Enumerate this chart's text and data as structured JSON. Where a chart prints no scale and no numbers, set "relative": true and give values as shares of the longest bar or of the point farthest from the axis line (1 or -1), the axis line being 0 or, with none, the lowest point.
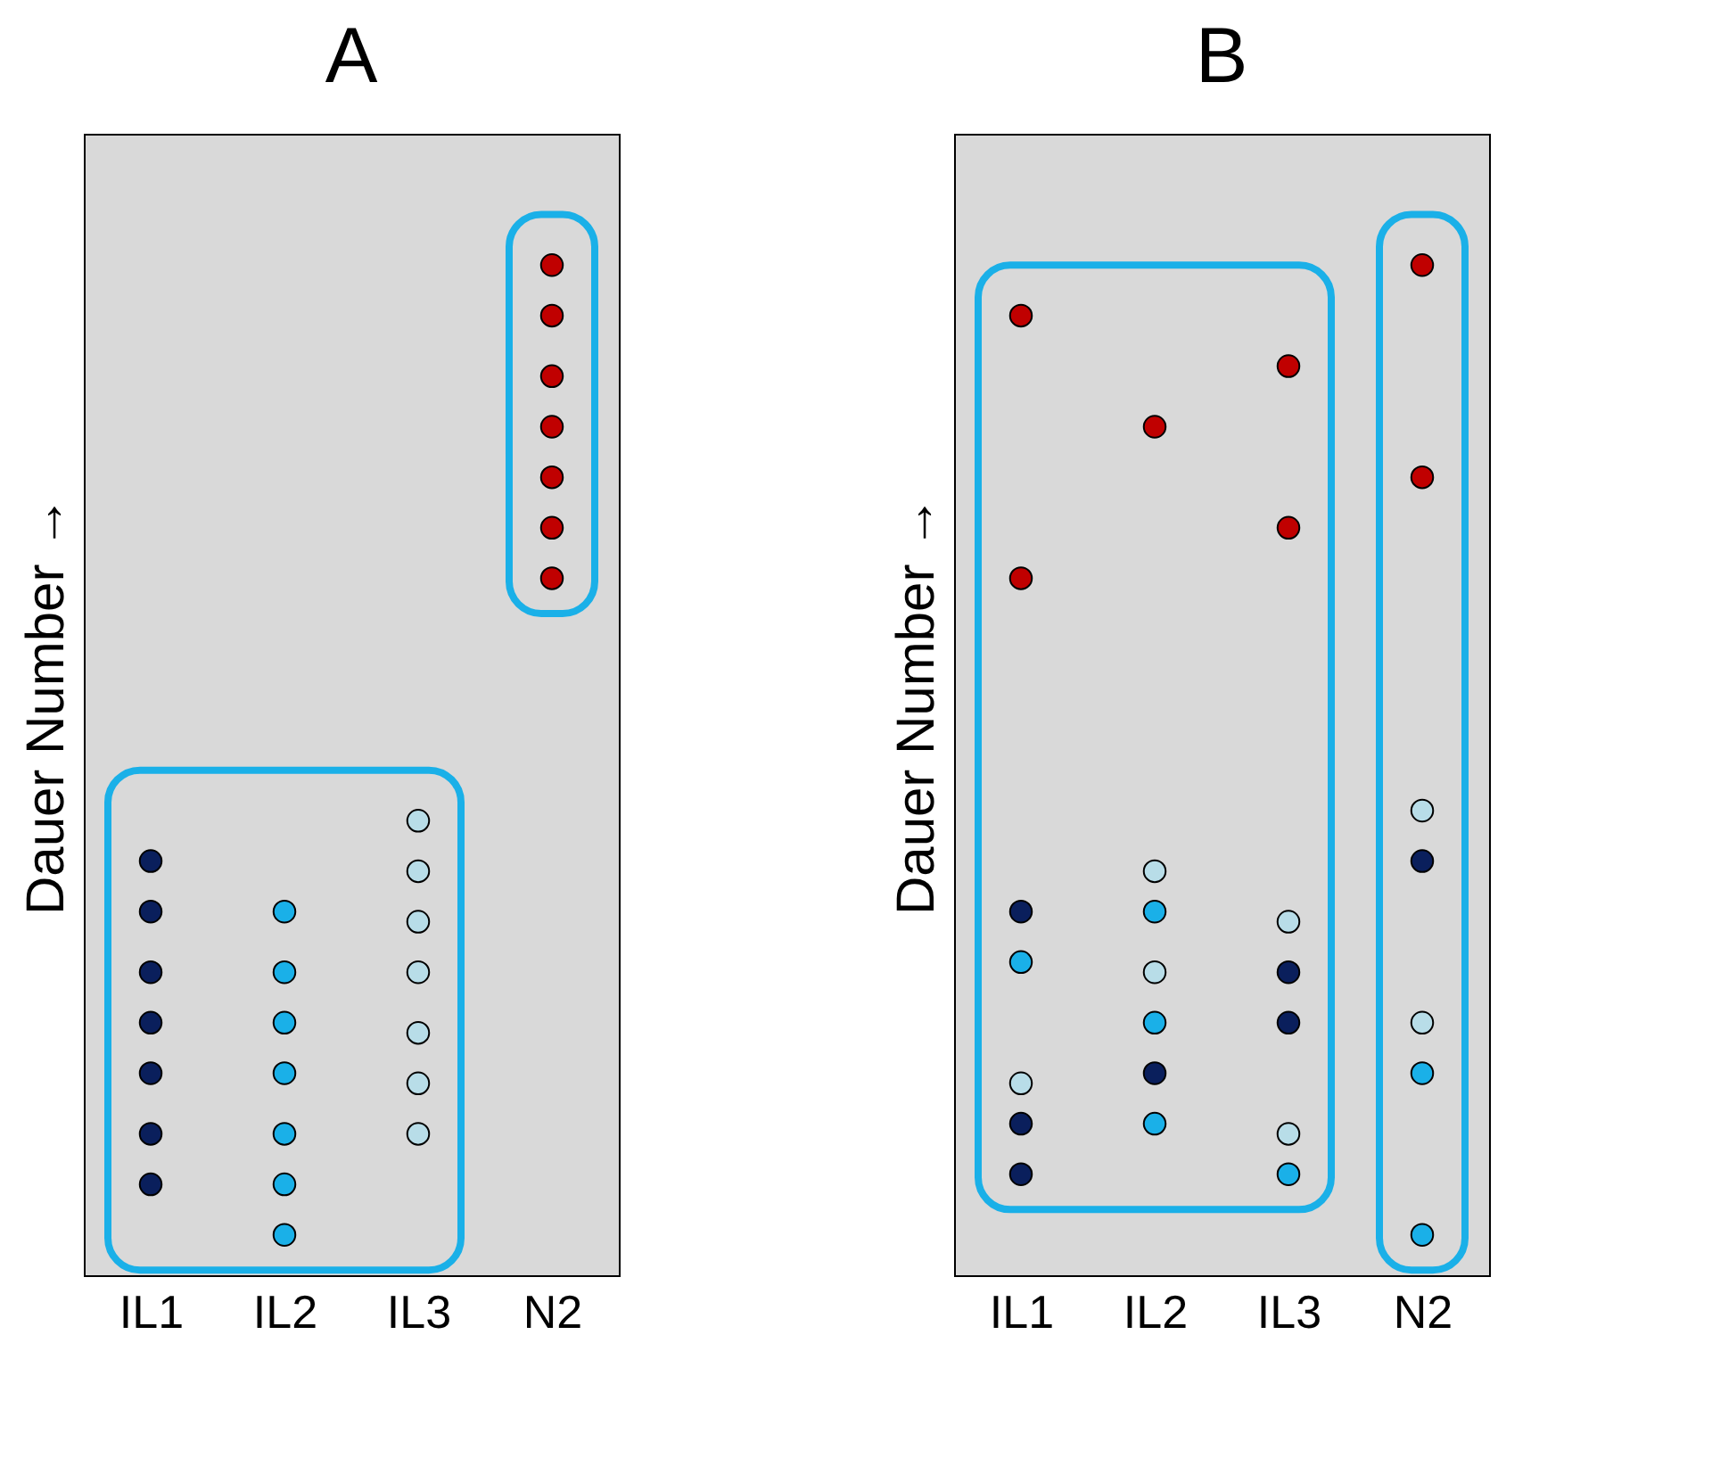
{
  "chart_data": [
    {
      "type": "scatter",
      "title": "A",
      "ylabel": "Dauer Number →",
      "relative": true,
      "categories": [
        "IL1",
        "IL2",
        "IL3",
        "N2"
      ],
      "series": [
        {
          "color": "#0a1f5c",
          "x": [
            "IL1",
            "IL1",
            "IL1",
            "IL1",
            "IL1",
            "IL1",
            "IL1"
          ],
          "values": [
            0.41,
            0.36,
            0.3,
            0.25,
            0.2,
            0.14,
            0.09
          ]
        },
        {
          "color": "#1ab0e8",
          "x": [
            "IL2",
            "IL2",
            "IL2",
            "IL2",
            "IL2",
            "IL2",
            "IL2"
          ],
          "values": [
            0.36,
            0.3,
            0.25,
            0.2,
            0.14,
            0.09,
            0.04
          ]
        },
        {
          "color": "#b8dde8",
          "x": [
            "IL3",
            "IL3",
            "IL3",
            "IL3",
            "IL3",
            "IL3",
            "IL3"
          ],
          "values": [
            0.45,
            0.4,
            0.35,
            0.3,
            0.24,
            0.19,
            0.14
          ]
        },
        {
          "color": "#c00000",
          "x": [
            "N2",
            "N2",
            "N2",
            "N2",
            "N2",
            "N2",
            "N2"
          ],
          "values": [
            1.0,
            0.95,
            0.89,
            0.84,
            0.79,
            0.74,
            0.69
          ]
        }
      ]
    },
    {
      "type": "scatter",
      "title": "B",
      "ylabel": "Dauer Number →",
      "relative": true,
      "categories": [
        "IL1",
        "IL2",
        "IL3",
        "N2"
      ],
      "series": [
        {
          "color": "#0a1f5c",
          "x": [
            "IL1",
            "IL1",
            "IL1",
            "IL2",
            "IL3",
            "IL3",
            "N2"
          ],
          "values": [
            0.36,
            0.15,
            0.1,
            0.2,
            0.3,
            0.25,
            0.41
          ]
        },
        {
          "color": "#1ab0e8",
          "x": [
            "IL1",
            "IL2",
            "IL2",
            "IL2",
            "IL3",
            "N2",
            "N2"
          ],
          "values": [
            0.31,
            0.36,
            0.25,
            0.15,
            0.1,
            0.2,
            0.04
          ]
        },
        {
          "color": "#b8dde8",
          "x": [
            "IL1",
            "IL2",
            "IL2",
            "IL3",
            "IL3",
            "N2",
            "N2"
          ],
          "values": [
            0.19,
            0.4,
            0.3,
            0.35,
            0.14,
            0.46,
            0.25
          ]
        },
        {
          "color": "#c00000",
          "x": [
            "IL1",
            "IL1",
            "IL2",
            "IL3",
            "IL3",
            "N2",
            "N2"
          ],
          "values": [
            0.95,
            0.69,
            0.84,
            0.9,
            0.74,
            1.0,
            0.79
          ]
        }
      ]
    }
  ]
}
